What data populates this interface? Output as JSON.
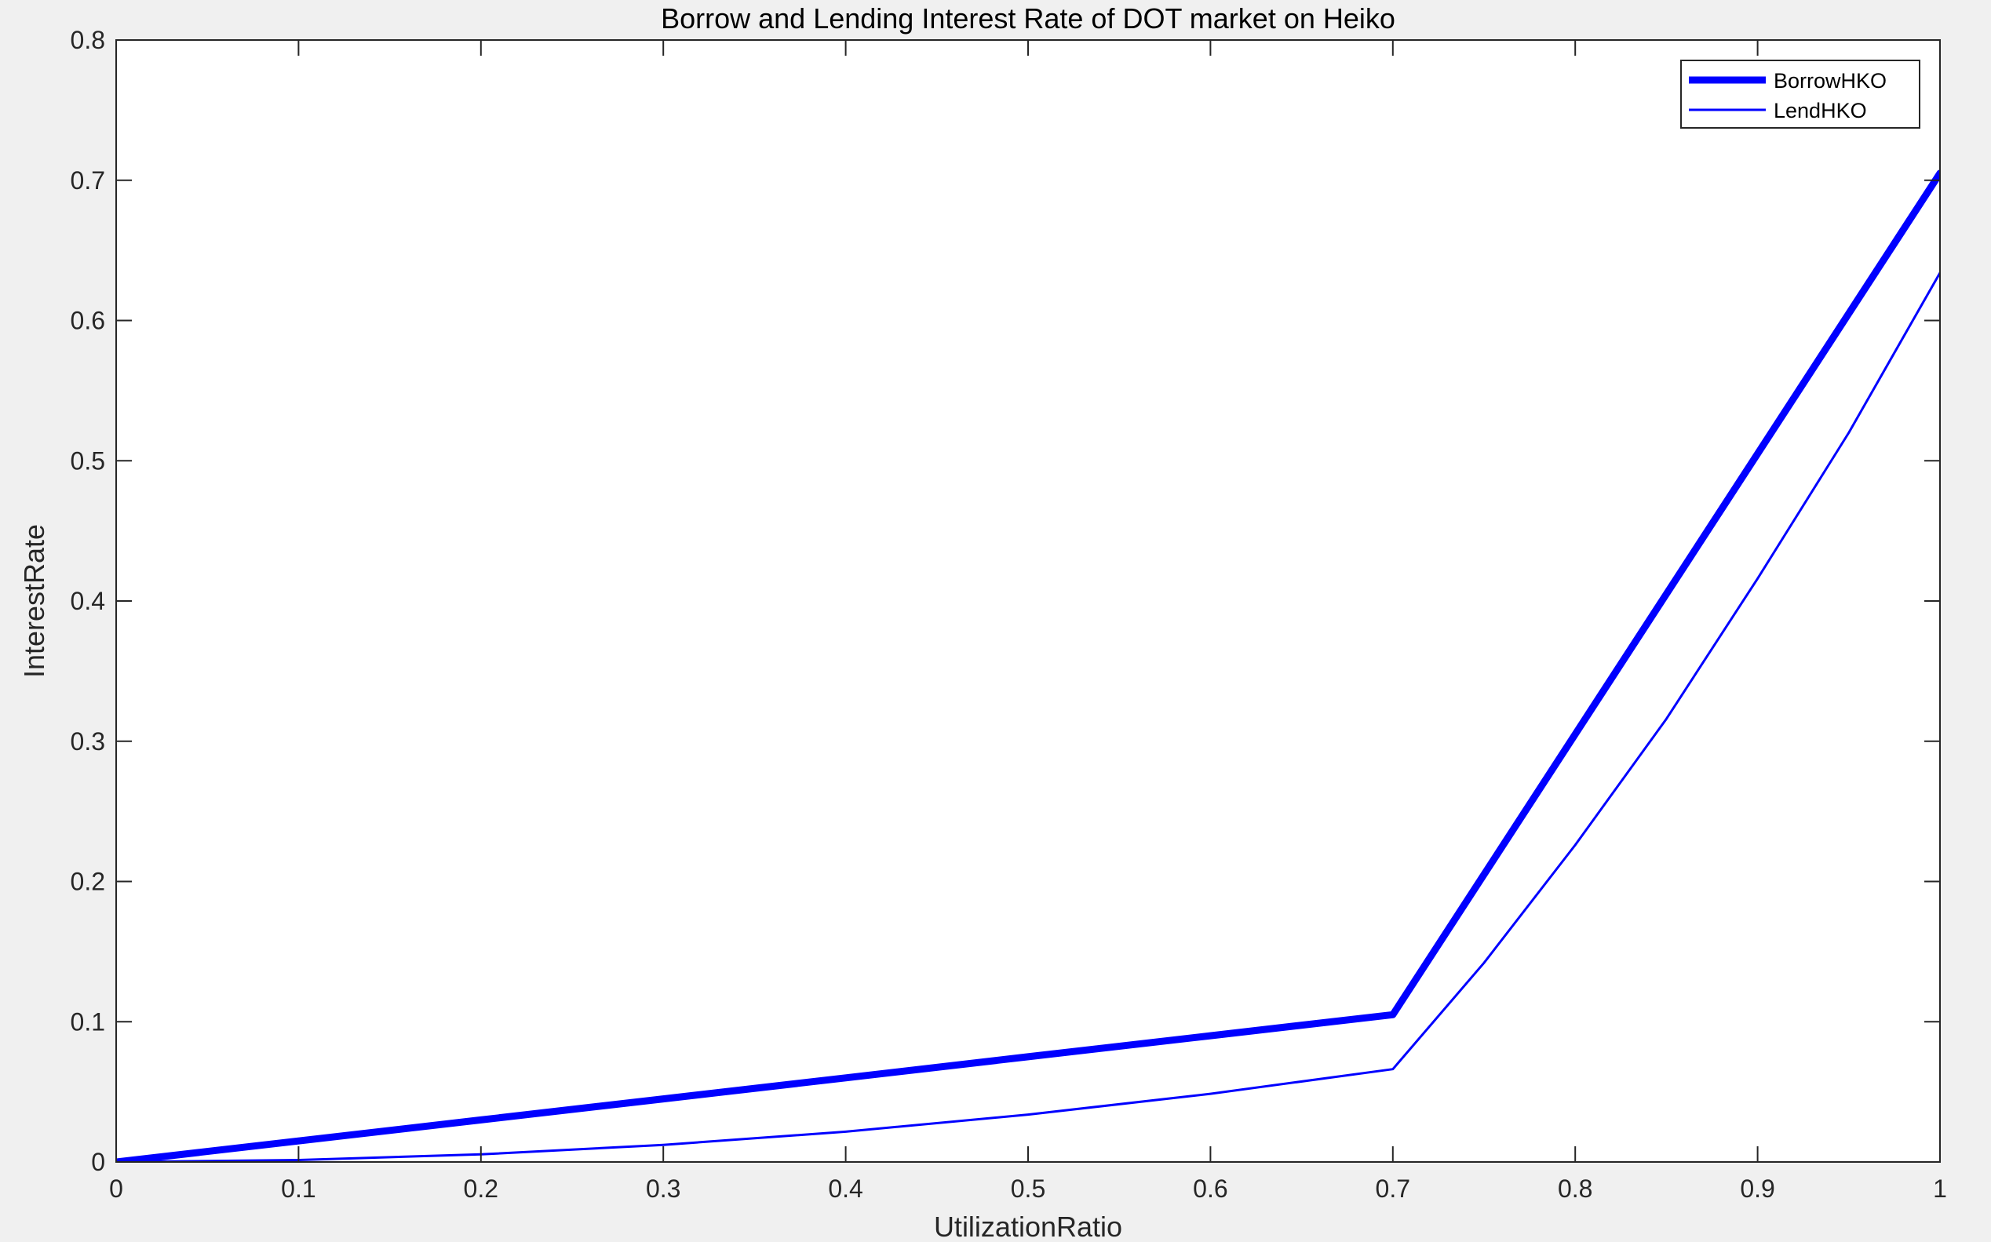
{
  "chart_data": {
    "type": "line",
    "title": "Borrow and Lending Interest Rate of DOT market on Heiko",
    "xlabel": "UtilizationRatio",
    "ylabel": "InterestRate",
    "xlim": [
      0,
      1
    ],
    "ylim": [
      0,
      0.8
    ],
    "x_ticks": [
      0,
      0.1,
      0.2,
      0.3,
      0.4,
      0.5,
      0.6,
      0.7,
      0.8,
      0.9,
      1
    ],
    "x_tick_labels": [
      "0",
      "0.1",
      "0.2",
      "0.3",
      "0.4",
      "0.5",
      "0.6",
      "0.7",
      "0.8",
      "0.9",
      "1"
    ],
    "y_ticks": [
      0,
      0.1,
      0.2,
      0.3,
      0.4,
      0.5,
      0.6,
      0.7,
      0.8
    ],
    "y_tick_labels": [
      "0",
      "0.1",
      "0.2",
      "0.3",
      "0.4",
      "0.5",
      "0.6",
      "0.7",
      "0.8"
    ],
    "grid": false,
    "legend_position": "top-right",
    "series": [
      {
        "name": "BorrowHKO",
        "color": "#0000ff",
        "style": "thick",
        "x": [
          0,
          0.1,
          0.2,
          0.3,
          0.4,
          0.5,
          0.6,
          0.7,
          0.8,
          0.9,
          1.0
        ],
        "y": [
          0,
          0.015,
          0.03,
          0.045,
          0.06,
          0.075,
          0.09,
          0.105,
          0.305,
          0.505,
          0.705
        ]
      },
      {
        "name": "LendHKO",
        "color": "#0000ff",
        "style": "thin",
        "x": [
          0,
          0.1,
          0.2,
          0.3,
          0.4,
          0.5,
          0.6,
          0.7,
          0.75,
          0.8,
          0.85,
          0.9,
          0.95,
          1.0
        ],
        "y": [
          0,
          0.0014,
          0.0054,
          0.0122,
          0.0216,
          0.0338,
          0.0486,
          0.0662,
          0.142,
          0.226,
          0.316,
          0.416,
          0.52,
          0.634
        ]
      }
    ]
  }
}
